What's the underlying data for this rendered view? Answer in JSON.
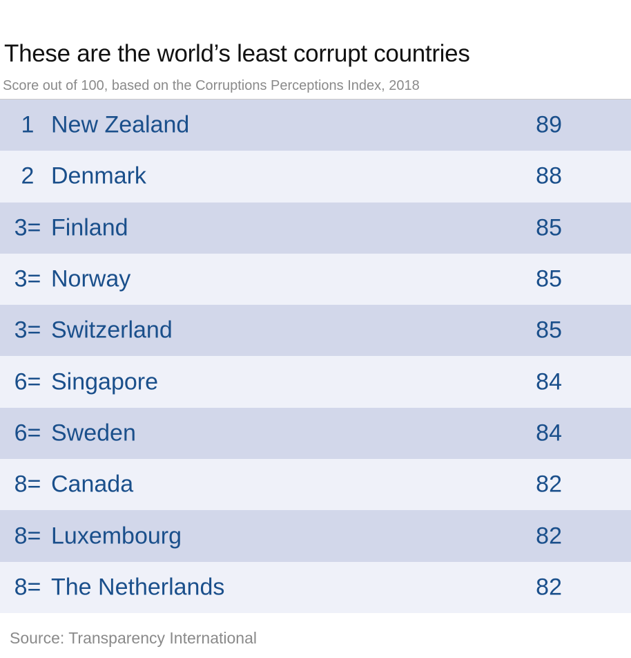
{
  "header": {
    "title": "These are the world’s least corrupt countries",
    "subtitle": "Score out of 100, based on the Corruptions Perceptions Index, 2018"
  },
  "footer": {
    "source": "Source: Transparency International"
  },
  "colors": {
    "row_dark": "#d2d7ea",
    "row_light": "#eff1f9",
    "text_blue": "#1a4f8b",
    "title": "#111111",
    "muted": "#8a8a8a"
  },
  "chart_data": {
    "type": "table",
    "title": "These are the world’s least corrupt countries",
    "subtitle": "Score out of 100, based on the Corruptions Perceptions Index, 2018",
    "rows": [
      {
        "rank": "1",
        "country": "New Zealand",
        "score": 89
      },
      {
        "rank": "2",
        "country": "Denmark",
        "score": 88
      },
      {
        "rank": "3=",
        "country": "Finland",
        "score": 85
      },
      {
        "rank": "3=",
        "country": "Norway",
        "score": 85
      },
      {
        "rank": "3=",
        "country": "Switzerland",
        "score": 85
      },
      {
        "rank": "6=",
        "country": "Singapore",
        "score": 84
      },
      {
        "rank": "6=",
        "country": "Sweden",
        "score": 84
      },
      {
        "rank": "8=",
        "country": "Canada",
        "score": 82
      },
      {
        "rank": "8=",
        "country": "Luxembourg",
        "score": 82
      },
      {
        "rank": "8=",
        "country": "The Netherlands",
        "score": 82
      }
    ]
  }
}
